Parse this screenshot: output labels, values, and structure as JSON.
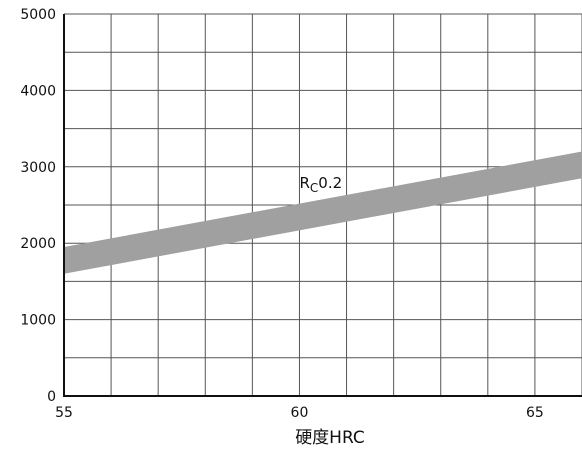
{
  "chart_data": {
    "type": "area",
    "title": "",
    "xlabel": "硬度HRC",
    "ylabel": "",
    "xlim": [
      55,
      66
    ],
    "ylim": [
      0,
      5000
    ],
    "x_ticks": [
      55,
      60,
      65
    ],
    "y_ticks": [
      0,
      1000,
      2000,
      3000,
      4000,
      5000
    ],
    "grid": true,
    "series": [
      {
        "label_main": "R",
        "label_sub": "C",
        "label_rest": "0.2",
        "x": [
          55,
          66
        ],
        "lower": [
          1600,
          2850
        ],
        "upper": [
          1950,
          3200
        ],
        "color": "#a0a0a0"
      }
    ]
  }
}
